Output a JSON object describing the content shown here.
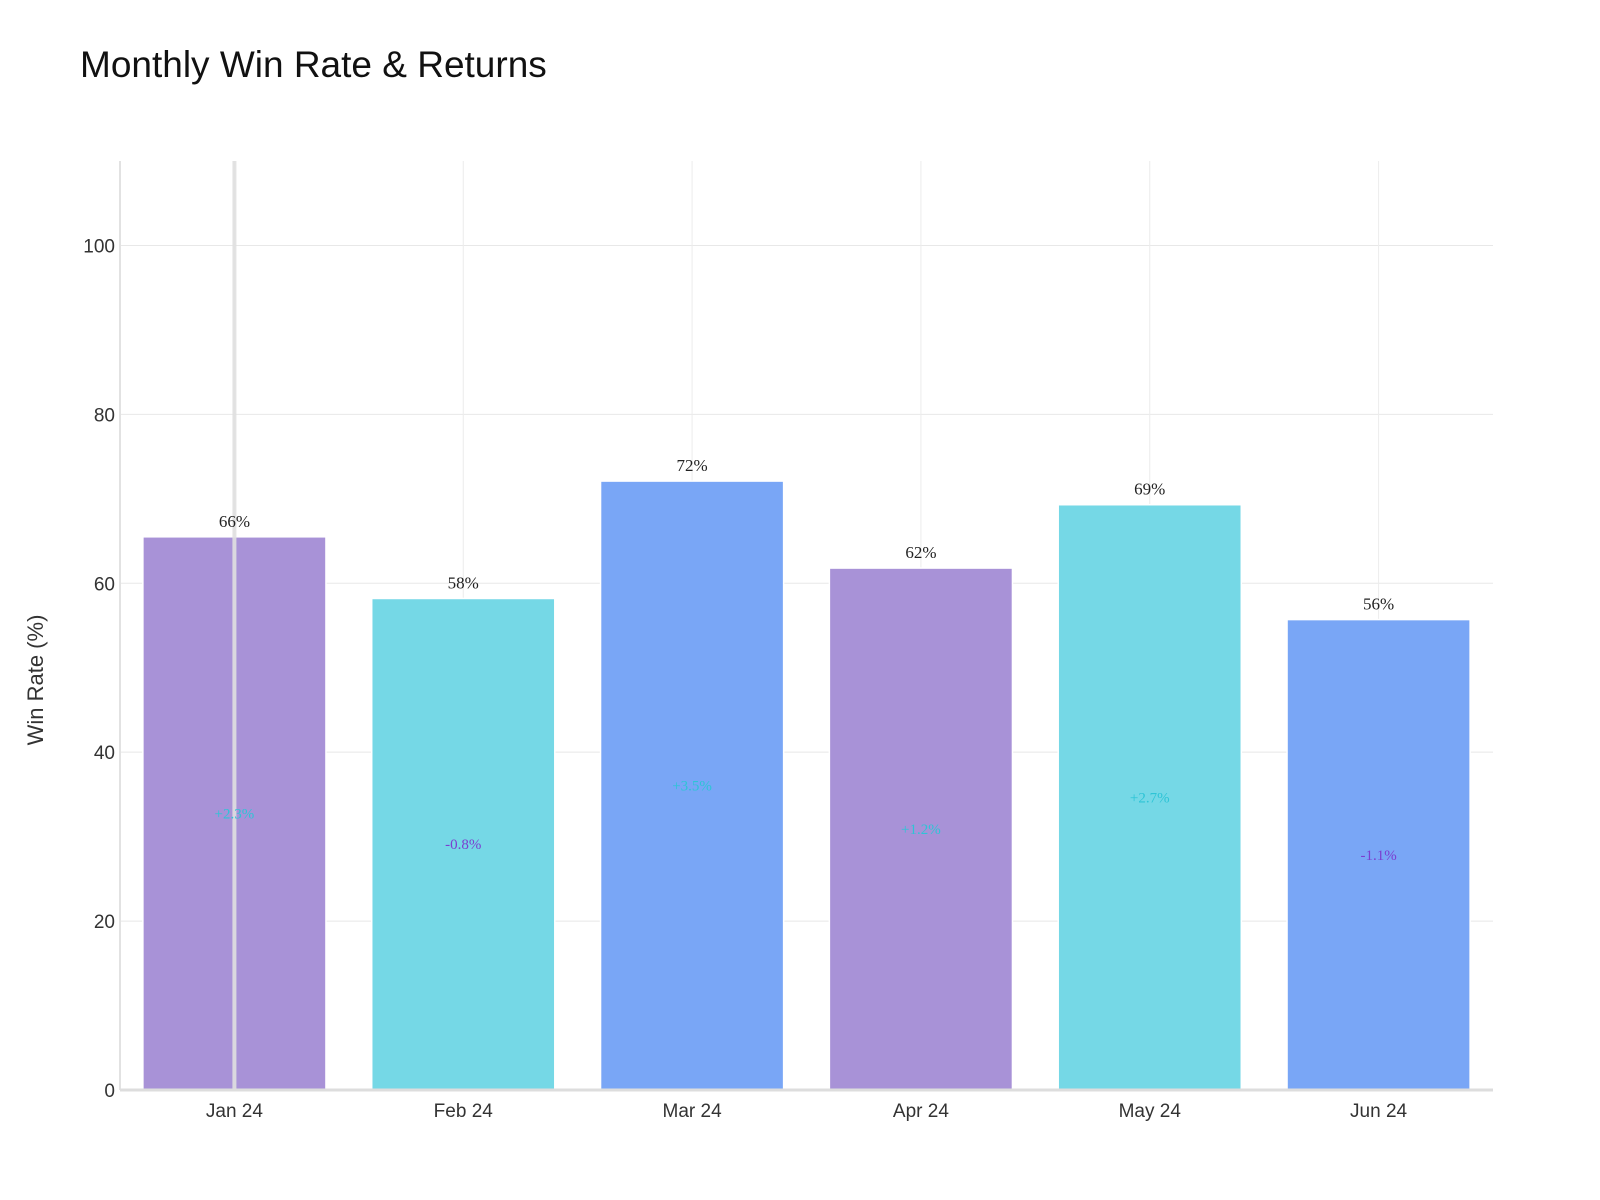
{
  "chart_data": {
    "type": "bar",
    "title": "Monthly Win Rate & Returns",
    "xlabel": "",
    "ylabel": "Win Rate (%)",
    "ylim": [
      0,
      110
    ],
    "yticks": [
      0,
      20,
      40,
      60,
      80,
      100
    ],
    "grid": true,
    "categories": [
      "Jan 24",
      "Feb 24",
      "Mar 24",
      "Apr 24",
      "May 24",
      "Jun 24"
    ],
    "values": [
      65.5,
      58.2,
      72.1,
      61.8,
      69.3,
      55.7
    ],
    "value_labels": [
      "66%",
      "58%",
      "72%",
      "62%",
      "69%",
      "56%"
    ],
    "returns": [
      2.3,
      -0.8,
      3.5,
      1.2,
      2.7,
      -1.1
    ],
    "return_labels": [
      "+2.3%",
      "-0.8%",
      "+3.5%",
      "+1.2%",
      "+2.7%",
      "-1.1%"
    ],
    "bar_colors": [
      "#a892d7",
      "#75d8e6",
      "#79a6f6",
      "#a892d7",
      "#75d8e6",
      "#79a6f6"
    ],
    "return_colors": {
      "positive": "#2ec4d6",
      "negative": "#7b3fd0"
    }
  }
}
